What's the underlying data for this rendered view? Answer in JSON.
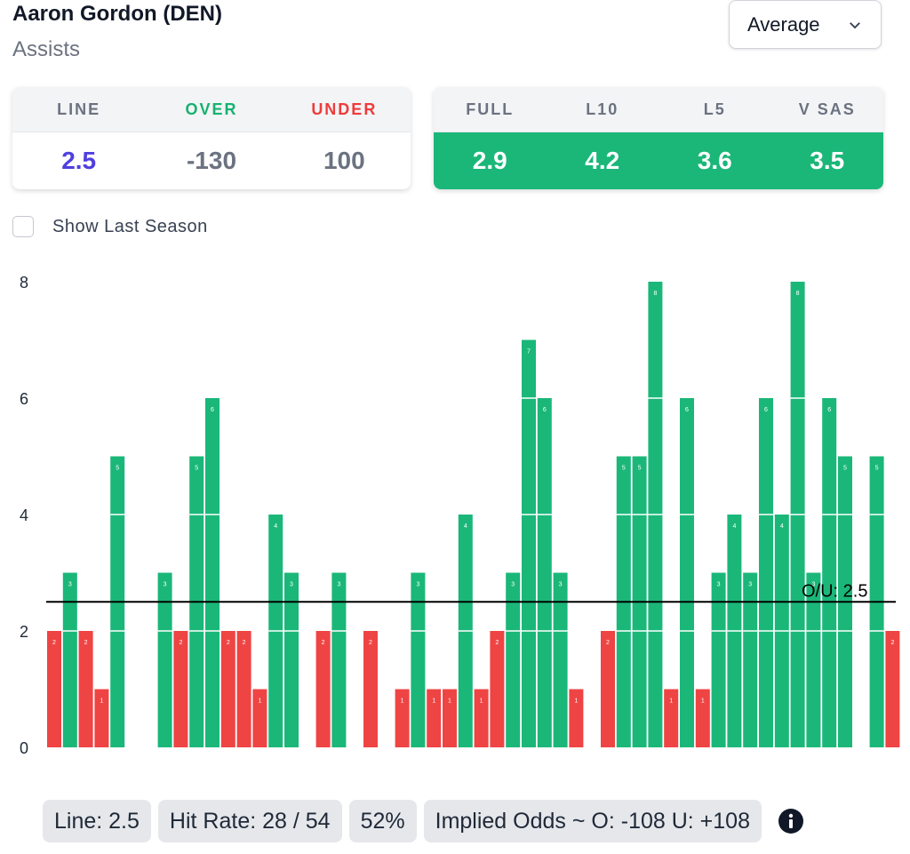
{
  "header": {
    "title": "Aaron Gordon (DEN)",
    "subtitle": "Assists",
    "dropdown_value": "Average"
  },
  "line_card": {
    "headers": [
      "LINE",
      "OVER",
      "UNDER"
    ],
    "values": [
      "2.5",
      "-130",
      "100"
    ]
  },
  "avg_card": {
    "headers": [
      "FULL",
      "L10",
      "L5",
      "V SAS"
    ],
    "values": [
      "2.9",
      "4.2",
      "3.6",
      "3.5"
    ]
  },
  "checkbox_label": "Show Last Season",
  "footer": {
    "line": "Line: 2.5",
    "hit_rate": "Hit Rate: 28 / 54",
    "pct": "52%",
    "implied": "Implied Odds ~ O: -108 U: +108"
  },
  "colors": {
    "over": "#1ab779",
    "under": "#ef4444",
    "line_value": "#4f3fe0",
    "over_header": "#16b270",
    "under_header": "#ef3b3b"
  },
  "icons": [
    "chevron-down-icon",
    "info-icon"
  ],
  "chart_data": {
    "type": "bar",
    "y_ticks": [
      0,
      2,
      4,
      6,
      8
    ],
    "ylim": [
      0,
      8
    ],
    "ou_line": 2.5,
    "ou_label": "O/U: 2.5",
    "values": [
      2,
      3,
      2,
      1,
      5,
      0,
      0,
      3,
      2,
      5,
      6,
      2,
      2,
      1,
      4,
      3,
      0,
      2,
      3,
      0,
      2,
      0,
      1,
      3,
      1,
      1,
      4,
      1,
      2,
      3,
      7,
      6,
      3,
      1,
      0,
      2,
      5,
      5,
      8,
      1,
      6,
      1,
      3,
      4,
      3,
      6,
      4,
      8,
      3,
      6,
      5,
      0,
      5,
      2
    ]
  }
}
